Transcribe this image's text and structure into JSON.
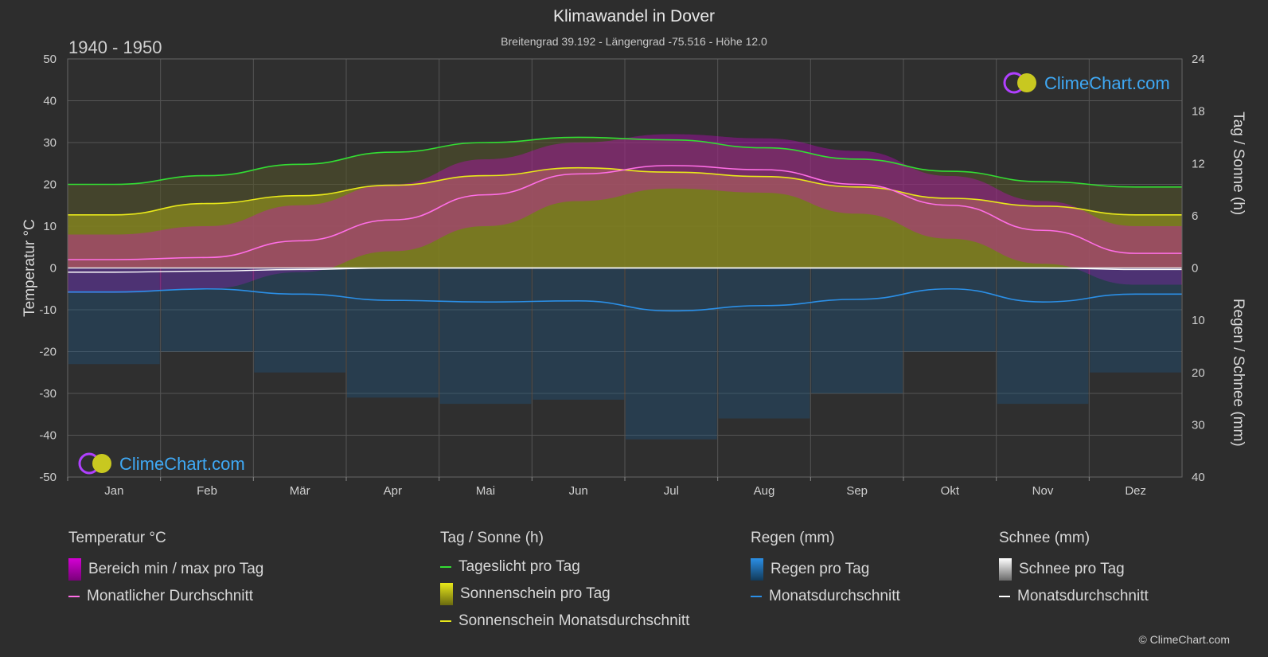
{
  "title": "Klimawandel in Dover",
  "subtitle": "Breitengrad 39.192 - Längengrad -75.516 - Höhe 12.0",
  "period": "1940 - 1950",
  "brand": "ClimeChart.com",
  "copyright": "© ClimeChart.com",
  "colors": {
    "background": "#2d2d2d",
    "daylight": "#33dd33",
    "sunshine_avg": "#e8e81a",
    "sunshine_fill": "#8a8a1e",
    "temp_avg": "#ff6ee6",
    "temp_range": "#d400d4",
    "rain_avg": "#2b8fe6",
    "rain_fill": "#1e5a8a",
    "snow_avg": "#ffffff"
  },
  "chart_data": {
    "type": "line",
    "categories": [
      "Jan",
      "Feb",
      "Mär",
      "Apr",
      "Mai",
      "Jun",
      "Jul",
      "Aug",
      "Sep",
      "Okt",
      "Nov",
      "Dez"
    ],
    "left_axis": {
      "label": "Temperatur °C",
      "range": [
        -50,
        50
      ],
      "ticks": [
        "50",
        "40",
        "30",
        "20",
        "10",
        "0",
        "-10",
        "-20",
        "-30",
        "-40",
        "-50"
      ]
    },
    "right_axis_top": {
      "label": "Tag / Sonne (h)",
      "range": [
        0,
        24
      ],
      "ticks": [
        "24",
        "18",
        "12",
        "6",
        "0"
      ]
    },
    "right_axis_bottom": {
      "label": "Regen / Schnee (mm)",
      "range": [
        0,
        40
      ],
      "ticks": [
        "10",
        "20",
        "30",
        "40"
      ]
    },
    "series": [
      {
        "name": "Tageslicht pro Tag",
        "axis": "sun_h",
        "values": [
          9.6,
          10.6,
          11.9,
          13.3,
          14.4,
          15.0,
          14.7,
          13.8,
          12.5,
          11.1,
          9.9,
          9.3
        ]
      },
      {
        "name": "Sonnenschein Monatsdurchschnitt",
        "axis": "sun_h",
        "values": [
          6.1,
          7.4,
          8.3,
          9.5,
          10.6,
          11.5,
          11.0,
          10.5,
          9.3,
          8.0,
          7.1,
          6.1
        ]
      },
      {
        "name": "Monatlicher Durchschnitt",
        "axis": "temp_c",
        "values": [
          2.0,
          2.5,
          6.5,
          11.5,
          17.5,
          22.5,
          24.5,
          23.5,
          20.0,
          15.0,
          9.0,
          3.5
        ]
      },
      {
        "name": "Regen Monatsdurchschnitt",
        "axis": "rain_mm",
        "values": [
          4.6,
          4.0,
          5.0,
          6.2,
          6.5,
          6.3,
          8.2,
          7.2,
          6.0,
          4.0,
          6.5,
          5.0
        ]
      },
      {
        "name": "Schnee Monatsdurchschnitt",
        "axis": "rain_mm",
        "values": [
          0.8,
          0.6,
          0.3,
          0.0,
          0.0,
          0.0,
          0.0,
          0.0,
          0.0,
          0.0,
          0.0,
          0.3
        ]
      }
    ],
    "temp_range_band": {
      "min": [
        -6,
        -5,
        -1,
        4,
        10,
        16,
        19,
        18,
        13,
        7,
        1,
        -4
      ],
      "max": [
        8,
        10,
        15,
        20,
        26,
        30,
        32,
        31,
        28,
        22,
        16,
        10
      ]
    }
  },
  "legend": {
    "groups": [
      {
        "title": "Temperatur °C",
        "items": [
          {
            "label": "Bereich min / max pro Tag",
            "kind": "box",
            "color": "#d400d4"
          },
          {
            "label": "Monatlicher Durchschnitt",
            "kind": "line",
            "color": "#ff6ee6"
          }
        ]
      },
      {
        "title": "Tag / Sonne (h)",
        "items": [
          {
            "label": "Tageslicht pro Tag",
            "kind": "line",
            "color": "#33dd33"
          },
          {
            "label": "Sonnenschein pro Tag",
            "kind": "box",
            "color": "#c8c820"
          },
          {
            "label": "Sonnenschein Monatsdurchschnitt",
            "kind": "line",
            "color": "#e8e81a"
          }
        ]
      },
      {
        "title": "Regen (mm)",
        "items": [
          {
            "label": "Regen pro Tag",
            "kind": "box",
            "color": "#2b8fe6"
          },
          {
            "label": "Monatsdurchschnitt",
            "kind": "line",
            "color": "#2b8fe6"
          }
        ]
      },
      {
        "title": "Schnee (mm)",
        "items": [
          {
            "label": "Schnee pro Tag",
            "kind": "box",
            "color": "#e0e0e0"
          },
          {
            "label": "Monatsdurchschnitt",
            "kind": "line",
            "color": "#ffffff"
          }
        ]
      }
    ]
  }
}
